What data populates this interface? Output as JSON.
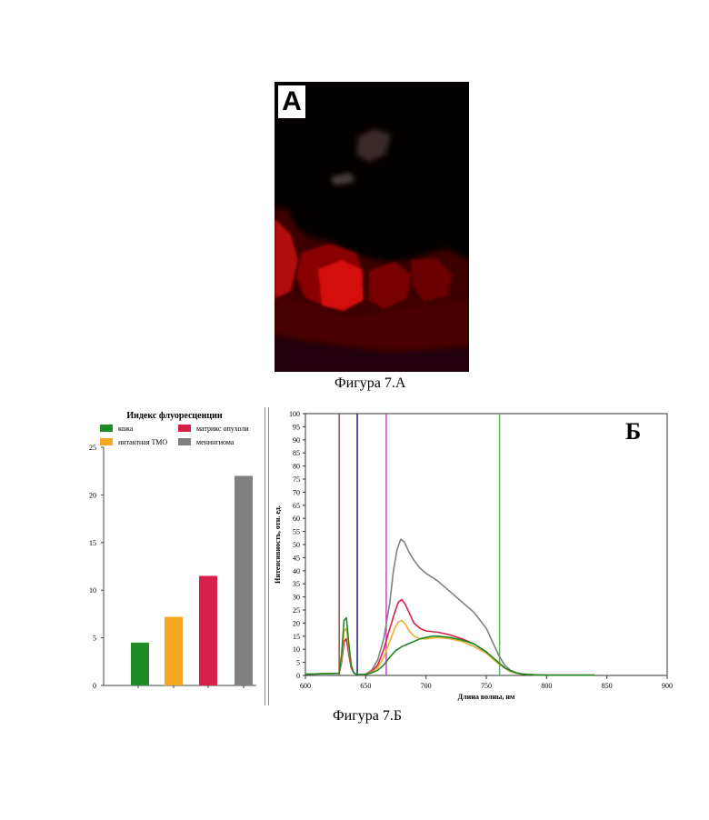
{
  "figure_a": {
    "panel_label": "А",
    "caption": "Фигура 7.А"
  },
  "figure_b": {
    "caption": "Фигура 7.Б"
  },
  "chart_data": [
    {
      "type": "bar",
      "title": "Индекс флуоресценции",
      "categories": [
        "кожа",
        "интактная ТМО",
        "матрикс опухоли",
        "менингиома"
      ],
      "values": [
        4.5,
        7.2,
        11.5,
        22
      ],
      "colors": [
        "#1e8a28",
        "#f5a623",
        "#d6204a",
        "#808080"
      ],
      "legend": [
        "кожа",
        "матрикс опухоли",
        "интактная ТМО",
        "менингиома"
      ],
      "legend_colors": [
        "#1e8a28",
        "#d6204a",
        "#f5a623",
        "#808080"
      ],
      "legend_position": "top",
      "ylim": [
        0,
        25
      ],
      "yticks": [
        "0",
        "5",
        "10",
        "15",
        "20",
        "25"
      ],
      "xlabel": "",
      "ylabel": "",
      "grid": false
    },
    {
      "type": "line",
      "panel_label": "Б",
      "xlabel": "Длина волны, нм",
      "ylabel": "Интенсивность, отн. ед.",
      "xlim": [
        600,
        900
      ],
      "ylim": [
        0,
        100
      ],
      "xticks": [
        "600",
        "650",
        "700",
        "750",
        "800",
        "850",
        "900"
      ],
      "yticks": [
        "0",
        "5",
        "10",
        "15",
        "20",
        "25",
        "30",
        "35",
        "40",
        "45",
        "50",
        "55",
        "60",
        "65",
        "70",
        "75",
        "80",
        "85",
        "90",
        "95",
        "100"
      ],
      "grid": false,
      "vlines": [
        {
          "x": 628,
          "color": "#a0504a"
        },
        {
          "x": 643,
          "color": "#1a1a8a"
        },
        {
          "x": 667,
          "color": "#cc44cc"
        },
        {
          "x": 761,
          "color": "#44cc44"
        }
      ],
      "series": [
        {
          "color": "#808080",
          "x": [
            600,
            628,
            630,
            632,
            634,
            636,
            638,
            640,
            642,
            645,
            650,
            655,
            660,
            665,
            670,
            673,
            676,
            679,
            682,
            686,
            690,
            695,
            700,
            710,
            720,
            730,
            740,
            750,
            755,
            760,
            765,
            770,
            775,
            780,
            790,
            800,
            820,
            840
          ],
          "y": [
            0.5,
            0.8,
            5,
            13,
            14,
            8,
            3,
            1,
            0.5,
            0.3,
            0.5,
            2,
            6,
            14,
            28,
            40,
            48,
            52,
            51,
            47,
            44,
            41,
            39,
            36,
            32,
            28,
            24,
            18,
            13,
            8,
            4,
            2,
            1,
            0.6,
            0.3,
            0.2,
            0.1,
            0.1
          ]
        },
        {
          "color": "#d6204a",
          "x": [
            600,
            628,
            630,
            632,
            634,
            636,
            638,
            640,
            642,
            645,
            650,
            655,
            660,
            665,
            670,
            674,
            677,
            680,
            683,
            686,
            690,
            695,
            700,
            710,
            720,
            730,
            740,
            750,
            755,
            760,
            765,
            770,
            775,
            780,
            790,
            800,
            820,
            840
          ],
          "y": [
            0.5,
            0.8,
            5,
            13,
            14,
            8,
            3,
            1,
            0.5,
            0.3,
            0.4,
            1.5,
            4,
            10,
            18,
            24,
            28,
            29,
            27,
            24,
            20,
            18,
            17,
            16.5,
            15.5,
            14,
            12,
            9,
            7,
            5,
            3,
            1.5,
            0.8,
            0.5,
            0.2,
            0.1,
            0.1,
            0.1
          ]
        },
        {
          "color": "#e8b030",
          "x": [
            600,
            628,
            630,
            632,
            634,
            636,
            638,
            640,
            642,
            645,
            650,
            655,
            660,
            665,
            670,
            674,
            677,
            680,
            683,
            686,
            690,
            695,
            700,
            710,
            720,
            730,
            740,
            750,
            755,
            760,
            765,
            770,
            775,
            780,
            790,
            800,
            820,
            840
          ],
          "y": [
            0.5,
            0.8,
            6,
            17,
            18,
            10,
            4,
            1,
            0.5,
            0.3,
            0.4,
            1.2,
            3,
            7,
            13,
            18,
            20.5,
            21,
            19.5,
            17,
            15,
            14,
            14,
            14.5,
            14,
            13,
            11,
            8.5,
            6.5,
            4.5,
            3,
            1.5,
            0.8,
            0.5,
            0.2,
            0.1,
            0.1,
            0.1
          ]
        },
        {
          "color": "#1e8a28",
          "x": [
            600,
            628,
            630,
            632,
            634,
            636,
            638,
            640,
            642,
            645,
            650,
            655,
            660,
            665,
            670,
            675,
            680,
            685,
            690,
            695,
            700,
            705,
            710,
            720,
            730,
            740,
            750,
            755,
            760,
            765,
            770,
            775,
            780,
            790,
            800,
            820,
            840
          ],
          "y": [
            0.5,
            0.8,
            8,
            21,
            22,
            12,
            4,
            1,
            0.5,
            0.3,
            0.4,
            1,
            2,
            4,
            7,
            9.5,
            11,
            12,
            13,
            14,
            14.5,
            15,
            15,
            14.5,
            13.5,
            12,
            9,
            7,
            5,
            3,
            1.8,
            1,
            0.5,
            0.2,
            0.1,
            0.1,
            0.1
          ]
        }
      ]
    }
  ]
}
